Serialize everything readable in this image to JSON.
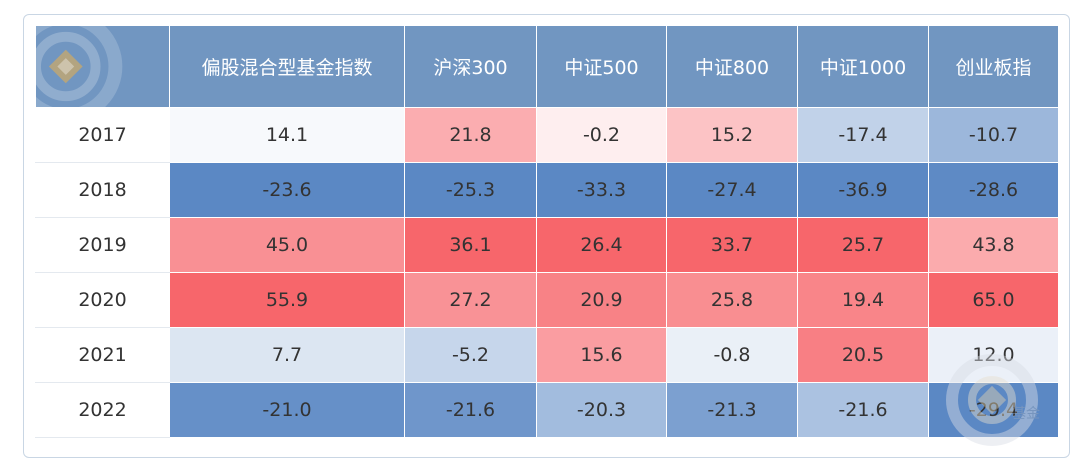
{
  "chart_data": {
    "type": "heatmap",
    "corner_label": "",
    "columns": [
      "偏股混合型基金指数",
      "沪深300",
      "中证500",
      "中证800",
      "中证1000",
      "创业板指"
    ],
    "rows": [
      {
        "year": "2017",
        "values": [
          "14.1",
          "21.8",
          "-0.2",
          "15.2",
          "-17.4",
          "-10.7"
        ]
      },
      {
        "year": "2018",
        "values": [
          "-23.6",
          "-25.3",
          "-33.3",
          "-27.4",
          "-36.9",
          "-28.6"
        ]
      },
      {
        "year": "2019",
        "values": [
          "45.0",
          "36.1",
          "26.4",
          "33.7",
          "25.7",
          "43.8"
        ]
      },
      {
        "year": "2020",
        "values": [
          "55.9",
          "27.2",
          "20.9",
          "25.8",
          "19.4",
          "65.0"
        ]
      },
      {
        "year": "2021",
        "values": [
          "7.7",
          "-5.2",
          "15.6",
          "-0.8",
          "20.5",
          "12.0"
        ]
      },
      {
        "year": "2022",
        "values": [
          "-21.0",
          "-21.6",
          "-20.3",
          "-21.3",
          "-21.6",
          "-29.4"
        ]
      }
    ],
    "colors": {
      "header_bg": "#7196c1",
      "high_red": "#f7666b",
      "white": "#ffffff",
      "low_blue": "#5b88c4"
    },
    "watermark_text": "基金"
  }
}
